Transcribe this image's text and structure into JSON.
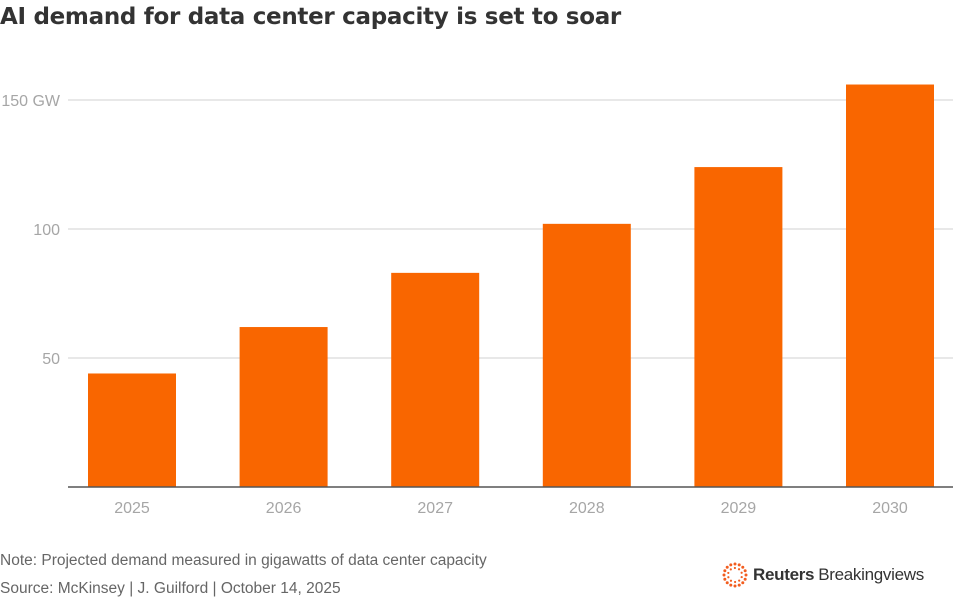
{
  "title": "AI demand for data center capacity is set to soar",
  "note": "Note: Projected demand measured in gigawatts of data center capacity",
  "source": "Source: McKinsey | J. Guilford | October 14, 2025",
  "logo": {
    "bold": "Reuters",
    "regular": "Breakingviews",
    "icon": "reuters-dots-icon"
  },
  "colors": {
    "bar": "#f96600",
    "grid": "#d9d9d9",
    "axis": "#555555",
    "tick": "#a6a6a6",
    "title": "#333333"
  },
  "chart_data": {
    "type": "bar",
    "title": "AI demand for data center capacity is set to soar",
    "xlabel": "",
    "ylabel": "GW",
    "categories": [
      "2025",
      "2026",
      "2027",
      "2028",
      "2029",
      "2030"
    ],
    "values": [
      44,
      62,
      83,
      102,
      124,
      156
    ],
    "ylim": [
      0,
      160
    ],
    "yticks": [
      50,
      100,
      150
    ],
    "ytick_labels": [
      "50",
      "100",
      "150 GW"
    ],
    "grid": true,
    "legend": "none"
  }
}
